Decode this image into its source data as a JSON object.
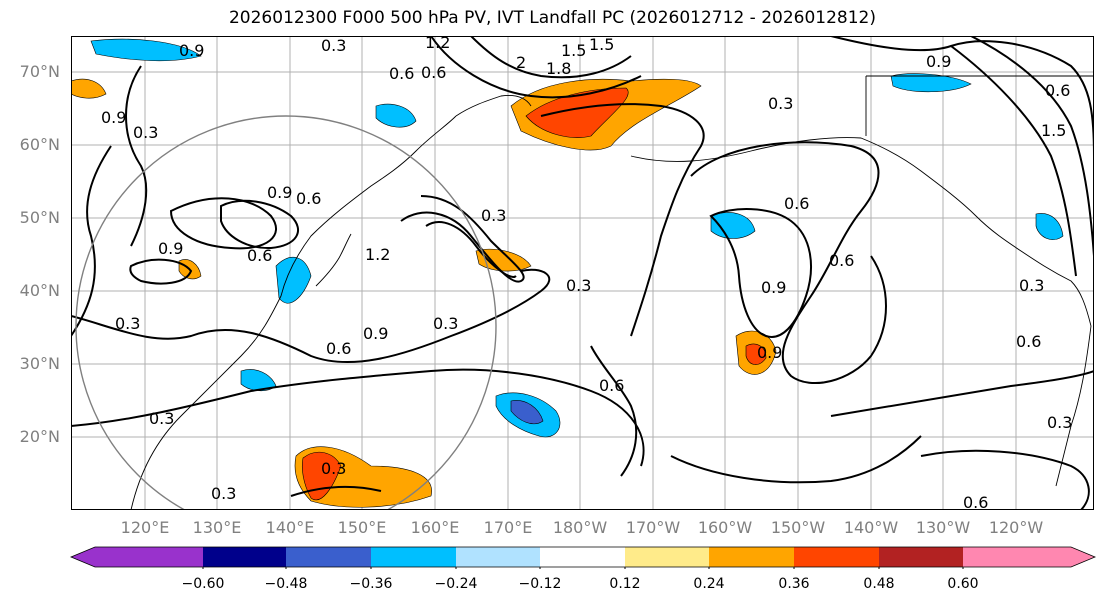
{
  "title": "2026012300 F000 500 hPa PV, IVT Landfall PC (2026012712 - 2026012812)",
  "latitude_labels": [
    "70°N",
    "60°N",
    "50°N",
    "40°N",
    "30°N",
    "20°N"
  ],
  "longitude_labels": [
    "120°E",
    "130°E",
    "140°E",
    "150°E",
    "160°E",
    "170°E",
    "180°W",
    "170°W",
    "160°W",
    "150°W",
    "140°W",
    "130°W",
    "120°W"
  ],
  "colorbar": {
    "ticks": [
      "−0.60",
      "−0.48",
      "−0.36",
      "−0.24",
      "−0.12",
      "0.12",
      "0.24",
      "0.36",
      "0.48",
      "0.60"
    ],
    "colors": [
      "#9932cc",
      "#00008b",
      "#3a5fcd",
      "#00bfff",
      "#b0e2ff",
      "#ffffff",
      "#ffeb8a",
      "#ffa500",
      "#ff4500",
      "#b22222",
      "#ff87b0"
    ]
  },
  "contour_labels": [
    "0.3",
    "0.6",
    "0.9",
    "1.2",
    "1.5",
    "1.8",
    "2",
    "1.5",
    "0.3",
    "0.6",
    "0.9",
    "0.6",
    "0.9",
    "0.9",
    "0.9",
    "0.6",
    "0.3",
    "0.3",
    "0.6",
    "0.9",
    "0.3",
    "1.2",
    "0.3",
    "0.6",
    "0.9",
    "0.3",
    "0.6",
    "0.3",
    "0.3",
    "0.6",
    "0.3",
    "0.6",
    "0.3",
    "0.3",
    "0.9",
    "0.6",
    "1.5",
    "0.6"
  ]
}
